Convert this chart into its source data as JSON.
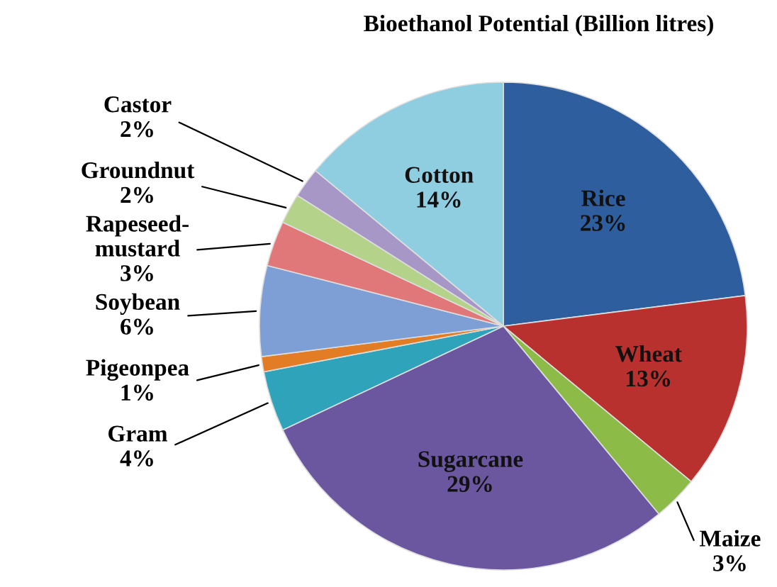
{
  "chart_data": {
    "type": "pie",
    "title": "Bioethanol Potential (Billion litres)",
    "categories": [
      "Rice",
      "Wheat",
      "Maize",
      "Sugarcane",
      "Gram",
      "Pigeonpea",
      "Soybean",
      "Rapeseed-mustard",
      "Groundnut",
      "Castor",
      "Cotton"
    ],
    "values": [
      23,
      13,
      3,
      29,
      4,
      1,
      6,
      3,
      2,
      2,
      14
    ],
    "value_labels": [
      "23%",
      "13%",
      "3%",
      "29%",
      "4%",
      "1%",
      "6%",
      "3%",
      "2%",
      "2%",
      "14%"
    ],
    "colors": [
      "#2e5e9e",
      "#b8312f",
      "#8cbb48",
      "#6b56a0",
      "#2ea3b9",
      "#e37d25",
      "#7e9fd6",
      "#e07778",
      "#b4d28a",
      "#a797c7",
      "#8fcde0"
    ],
    "legend": false
  }
}
